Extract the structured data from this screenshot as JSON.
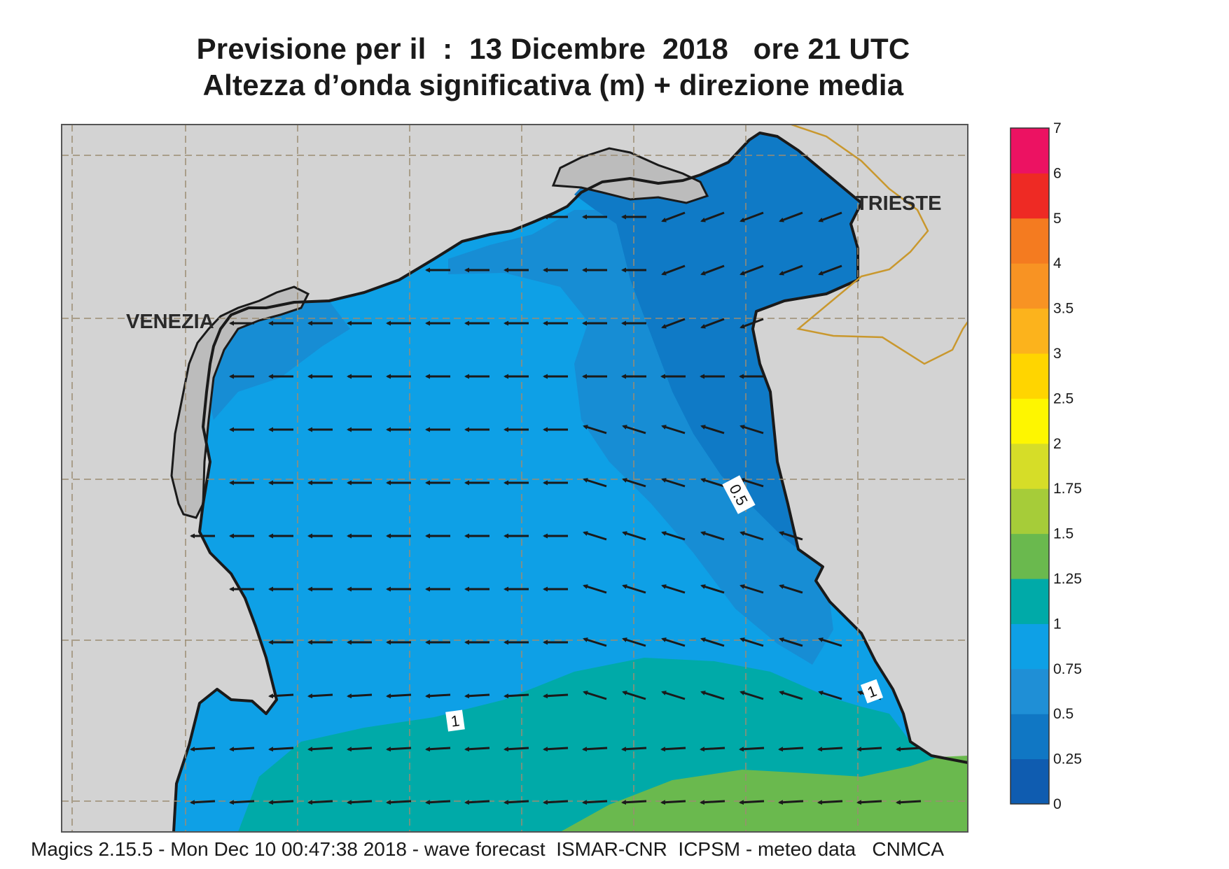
{
  "header": {
    "title_line1": "Previsione per il  :  13 Dicembre  2018   ore 21 UTC",
    "title_line2": "Altezza d’onda significativa (m) + direzione media"
  },
  "map": {
    "cities": [
      {
        "name": "VENEZIA"
      },
      {
        "name": "TRIESTE"
      }
    ],
    "contour_labels": [
      "0.5",
      "1",
      "1"
    ],
    "land_color": "#d3d3d3",
    "border_color": "#c9982e",
    "grid": true
  },
  "legend": {
    "levels": [
      "0",
      "0.25",
      "0.5",
      "0.75",
      "1",
      "1.25",
      "1.5",
      "1.75",
      "2",
      "2.5",
      "3",
      "3.5",
      "4",
      "5",
      "6",
      "7"
    ],
    "colors": [
      "#0f5cb0",
      "#1077c4",
      "#1f8fd6",
      "#0ea0e6",
      "#00aaa8",
      "#6ab94e",
      "#a6cc39",
      "#d6dd28",
      "#fef600",
      "#ffd500",
      "#fcb31c",
      "#f89323",
      "#f47b20",
      "#ee2a24",
      "#ec1262"
    ]
  },
  "footer": {
    "text": "Magics 2.15.5 - Mon Dec 10 00:47:38 2018 - wave forecast  ISMAR-CNR  ICPSM - meteo data   CNMCA"
  }
}
